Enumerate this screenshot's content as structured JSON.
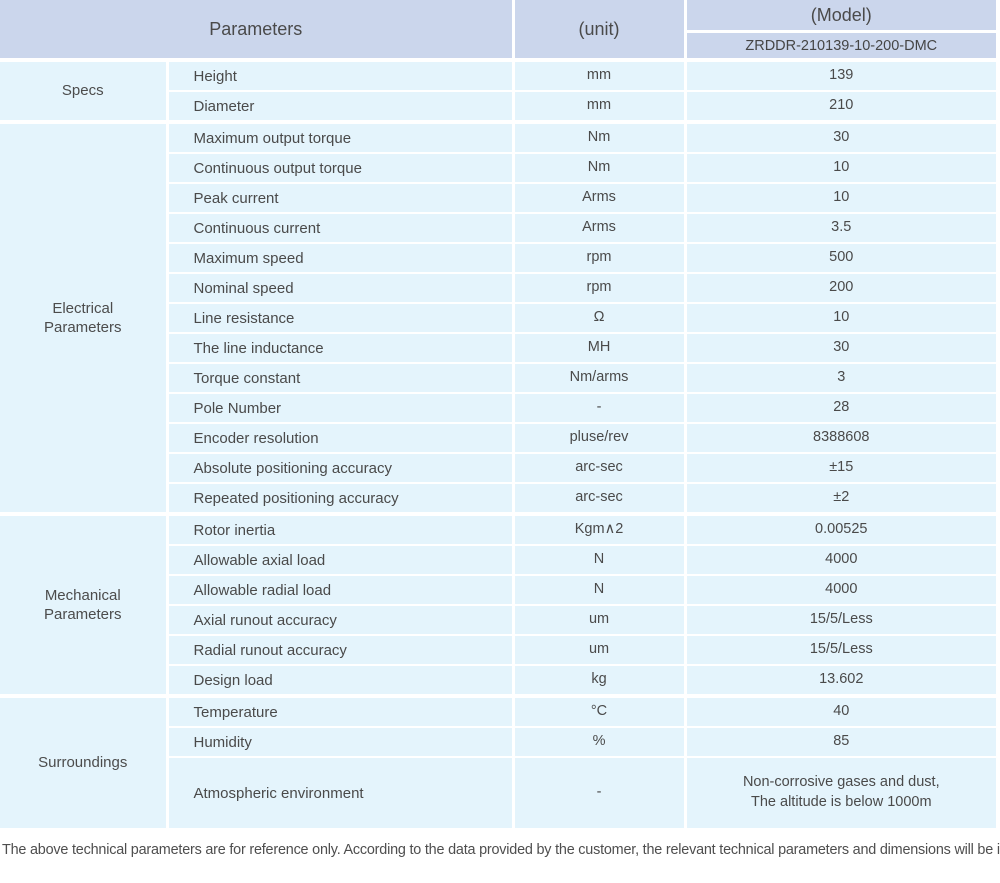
{
  "colors": {
    "header_bg": "#cbd6ec",
    "row_bg": "#e4f4fc",
    "divider": "#ffffff",
    "text": "#4a4a4a"
  },
  "table": {
    "header": {
      "parameters_label": "Parameters",
      "unit_label": "(unit)",
      "model_label": "(Model)",
      "model_number": "ZRDDR-210139-10-200-DMC"
    },
    "sections": [
      {
        "id": "specs",
        "group": "Specs",
        "rows": [
          {
            "param": "Height",
            "unit": "mm",
            "value": "139"
          },
          {
            "param": "Diameter",
            "unit": "mm",
            "value": "210"
          }
        ]
      },
      {
        "id": "electrical-parameters",
        "group": "Electrical\nParameters",
        "rows": [
          {
            "param": "Maximum output torque",
            "unit": "Nm",
            "value": "30"
          },
          {
            "param": "Continuous output torque",
            "unit": "Nm",
            "value": "10"
          },
          {
            "param": "Peak current",
            "unit": "Arms",
            "value": "10"
          },
          {
            "param": "Continuous current",
            "unit": "Arms",
            "value": "3.5"
          },
          {
            "param": "Maximum speed",
            "unit": "rpm",
            "value": "500"
          },
          {
            "param": "Nominal speed",
            "unit": "rpm",
            "value": "200"
          },
          {
            "param": "Line resistance",
            "unit": "Ω",
            "value": "10"
          },
          {
            "param": "The line inductance",
            "unit": "MH",
            "value": "30"
          },
          {
            "param": "Torque constant",
            "unit": "Nm/arms",
            "value": "3"
          },
          {
            "param": "Pole Number",
            "unit": "-",
            "value": "28"
          },
          {
            "param": "Encoder resolution",
            "unit": "pluse/rev",
            "value": "8388608"
          },
          {
            "param": "Absolute positioning accuracy",
            "unit": "arc-sec",
            "value": "±15"
          },
          {
            "param": "Repeated positioning accuracy",
            "unit": "arc-sec",
            "value": "±2"
          }
        ]
      },
      {
        "id": "mechanical-parameters",
        "group": "Mechanical\nParameters",
        "rows": [
          {
            "param": "Rotor inertia",
            "unit": "Kgm∧2",
            "value": "0.00525"
          },
          {
            "param": "Allowable axial load",
            "unit": "N",
            "value": "4000"
          },
          {
            "param": "Allowable radial load",
            "unit": "N",
            "value": "4000"
          },
          {
            "param": "Axial runout accuracy",
            "unit": "um",
            "value": "15/5/Less"
          },
          {
            "param": "Radial runout accuracy",
            "unit": "um",
            "value": "15/5/Less"
          },
          {
            "param": "Design load",
            "unit": "kg",
            "value": "13.602"
          }
        ]
      },
      {
        "id": "surroundings",
        "group": "Surroundings",
        "rows": [
          {
            "param": "Temperature",
            "unit": "°C",
            "value": "40"
          },
          {
            "param": "Humidity",
            "unit": "%",
            "value": "85"
          },
          {
            "param": "Atmospheric environment",
            "unit": "-",
            "value": "Non-corrosive gases and dust,\nThe altitude is below 1000m",
            "tall": true
          }
        ]
      }
    ]
  },
  "footnote": "The above technical parameters are for reference only. According to the data provided by the customer, the relevant technical parameters and dimensions will be issued."
}
